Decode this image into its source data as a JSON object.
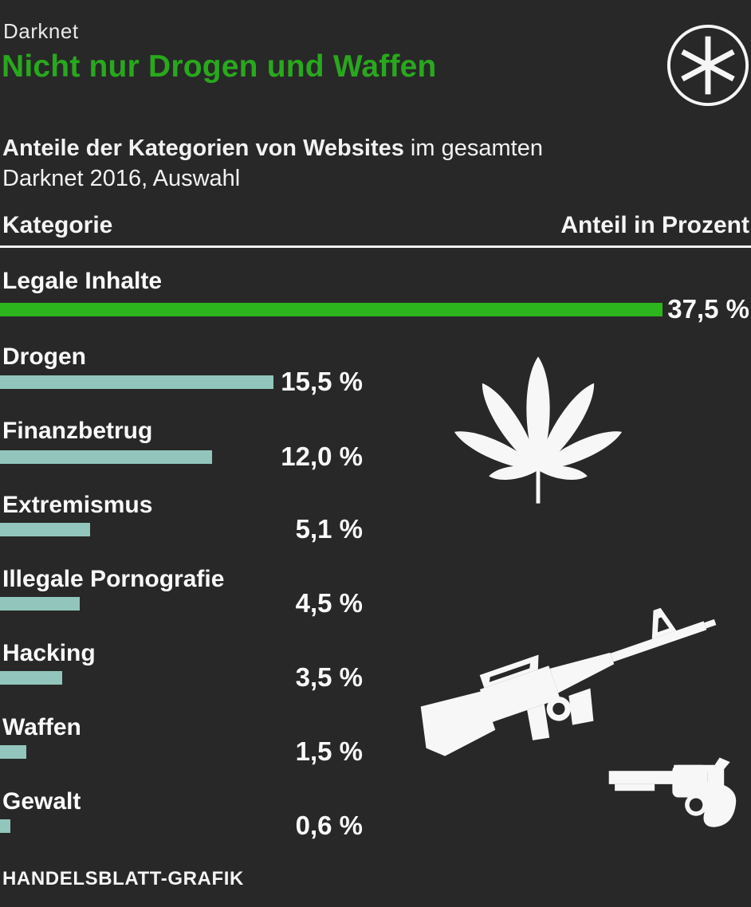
{
  "colors": {
    "background": "#282828",
    "text": "#f5f5f5",
    "accent_green": "#29a81e",
    "bar_green": "#2db51e",
    "bar_teal": "#92c6bc"
  },
  "header": {
    "kicker": "Darknet",
    "title": "Nicht nur Drogen und Waffen",
    "logo_icon": "asterisk-in-circle-icon"
  },
  "subtitle": {
    "bold": "Anteile der Kategorien von Websites",
    "rest_line1": " im gesamten",
    "line2": "Darknet 2016, Auswahl"
  },
  "table_header": {
    "category": "Kategorie",
    "value": "Anteil in Prozent"
  },
  "chart_data": {
    "type": "bar",
    "orientation": "horizontal",
    "title": "Anteile der Kategorien von Websites im gesamten Darknet 2016, Auswahl",
    "xlabel": "Anteil in Prozent",
    "ylabel": "Kategorie",
    "xlim": [
      0,
      37.5
    ],
    "grid": false,
    "legend": false,
    "categories": [
      "Legale Inhalte",
      "Drogen",
      "Finanzbetrug",
      "Extremismus",
      "Illegale Pornografie",
      "Hacking",
      "Waffen",
      "Gewalt"
    ],
    "values": [
      37.5,
      15.5,
      12.0,
      5.1,
      4.5,
      3.5,
      1.5,
      0.6
    ],
    "value_labels": [
      "37,5 %",
      "15,5 %",
      "12,0 %",
      "5,1 %",
      "4,5 %",
      "3,5 %",
      "1,5 %",
      "0,6 %"
    ],
    "highlight_category": "Legale Inhalte",
    "decoration_icons": [
      "cannabis-leaf-icon",
      "assault-rifle-icon",
      "revolver-icon"
    ]
  },
  "footer": {
    "credit": "HANDELSBLATT-GRAFIK"
  }
}
